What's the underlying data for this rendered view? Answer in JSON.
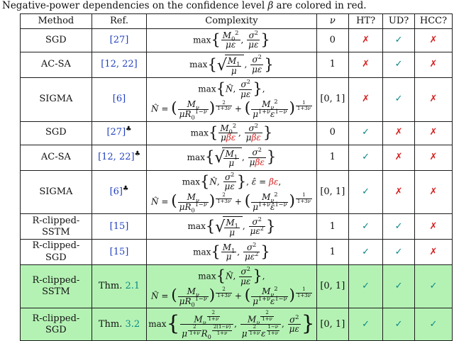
{
  "caption": {
    "prefix": "Negative-power dependencies on the confidence level ",
    "beta": "β",
    "suffix": " are colored in red."
  },
  "colors": {
    "blue": "#2140bf",
    "teal": "#0b8787",
    "red": "#d62222",
    "green": "#b4f2b4"
  },
  "marks": {
    "check": "✓",
    "cross": "✗",
    "club": "♣"
  },
  "header": [
    "Method",
    "Ref.",
    "Complexity",
    "<i>ν</i>",
    "HT?",
    "UD?",
    "HCC?"
  ],
  "rows": [
    {
      "method": "SGD",
      "ref": {
        "prefix": "",
        "link": "[27]",
        "style": "cite",
        "club": false
      },
      "complexity": [
        "max<span class='big'>{</span><span class='fr'><span class='n'><i>M</i><sub>0</sub><sup>2</sup></span><span class='d'><i>με</i></span></span>, <span class='fr'><span class='n'><i>σ</i><sup>2</sup></span><span class='d'><i>με</i></span></span><span class='big'>}</span>"
      ],
      "nu": "0",
      "ht": false,
      "ud": true,
      "hcc": false,
      "highlight": false
    },
    {
      "method": "AC-SA",
      "ref": {
        "prefix": "",
        "link": "[12, 22]",
        "style": "cite",
        "club": false
      },
      "complexity": [
        "max<span class='big'>{</span><span class='sq'><span class='rs'>√</span><span class='rb'><span class='fr'><span class='n'><i>M</i><sub>1</sub></span><span class='d'><i>μ</i></span></span></span></span>, <span class='fr'><span class='n'><i>σ</i><sup>2</sup></span><span class='d'><i>με</i></span></span><span class='big'>}</span>"
      ],
      "nu": "1",
      "ht": false,
      "ud": true,
      "hcc": false,
      "highlight": false
    },
    {
      "method": "SIGMA",
      "ref": {
        "prefix": "",
        "link": "[6]",
        "style": "cite",
        "club": false
      },
      "complexity": [
        "max<span class='big'>{</span><i>N̂</i>, <span class='fr'><span class='n'><i>σ</i><sup>2</sup></span><span class='d'><i>με</i></span></span><span class='big'>}</span>,",
        "<i>N̂</i> = <span class='bp'>(</span><span class='fr'><span class='n'><i>M</i><sub><i>ν</i></sub></span><span class='d'><i>μR</i><sub>0</sub><sup>1−<i>ν</i></sup></span></span><span class='bp'>)</span><span class='ex'><span class='fr'><span class='n'>2</span><span class='d'>1+3<i>ν</i></span></span></span> + <span class='bp'>(</span><span class='fr'><span class='n'><i>M</i><sub><i>ν</i></sub><sup>2</sup></span><span class='d'><i>μ</i><sup>1+<i>ν</i></sup><i>ε</i><sup>1−<i>ν</i></sup></span></span><span class='bp'>)</span><span class='ex'><span class='fr'><span class='n'>1</span><span class='d'>1+3<i>ν</i></span></span></span>"
      ],
      "nu": "[0, 1]",
      "ht": false,
      "ud": true,
      "hcc": false,
      "highlight": false
    },
    {
      "method": "SGD",
      "ref": {
        "prefix": "",
        "link": "[27]",
        "style": "cite",
        "club": true
      },
      "complexity": [
        "max<span class='big'>{</span><span class='fr'><span class='n'><i>M</i><sub>0</sub><sup>2</sup></span><span class='d'><i>μ</i><span class='red'><i>βε</i></span></span></span>, <span class='fr'><span class='n'><i>σ</i><sup>2</sup></span><span class='d'><i>μ</i><span class='red'><i>βε</i></span></span></span><span class='big'>}</span>"
      ],
      "nu": "0",
      "ht": true,
      "ud": false,
      "hcc": false,
      "highlight": false
    },
    {
      "method": "AC-SA",
      "ref": {
        "prefix": "",
        "link": "[12, 22]",
        "style": "cite",
        "club": true
      },
      "complexity": [
        "max<span class='big'>{</span><span class='sq'><span class='rs'>√</span><span class='rb'><span class='fr'><span class='n'><i>M</i><sub>1</sub></span><span class='d'><i>μ</i></span></span></span></span>, <span class='fr'><span class='n'><i>σ</i><sup>2</sup></span><span class='d'><i>μ</i><span class='red'><i>βε</i></span></span></span><span class='big'>}</span>"
      ],
      "nu": "1",
      "ht": true,
      "ud": false,
      "hcc": false,
      "highlight": false
    },
    {
      "method": "SIGMA",
      "ref": {
        "prefix": "",
        "link": "[6]",
        "style": "cite",
        "club": true
      },
      "complexity": [
        "max<span class='big'>{</span><i>N̂</i>, <span class='fr'><span class='n'><i>σ</i><sup>2</sup></span><span class='d'><i>με</i></span></span><span class='big'>}</span>, <i>ε̂</i> = <span class='red'><i>βε</i></span>,",
        "<i>N̂</i> = <span class='bp'>(</span><span class='fr'><span class='n'><i>M</i><sub><i>ν</i></sub></span><span class='d'><i>μR</i><sub>0</sub><sup>1−<i>ν</i></sup></span></span><span class='bp'>)</span><span class='ex'><span class='fr'><span class='n'>2</span><span class='d'>1+3<i>ν</i></span></span></span> + <span class='bp'>(</span><span class='fr'><span class='n'><i>M</i><sub><i>ν</i></sub><sup>2</sup></span><span class='d'><i>μ</i><sup>1+<i>ν</i></sup><i>ε̂</i><sup>1−<i>ν</i></sup></span></span><span class='bp'>)</span><span class='ex'><span class='fr'><span class='n'>1</span><span class='d'>1+3<i>ν</i></span></span></span>"
      ],
      "nu": "[0, 1]",
      "ht": true,
      "ud": false,
      "hcc": false,
      "highlight": false
    },
    {
      "method": "R-clipped-SSTM",
      "ref": {
        "prefix": "",
        "link": "[15]",
        "style": "cite",
        "club": false
      },
      "complexity": [
        "max<span class='big'>{</span><span class='sq'><span class='rs'>√</span><span class='rb'><span class='fr'><span class='n'><i>M</i><sub>1</sub></span><span class='d'><i>μ</i></span></span></span></span>, <span class='fr'><span class='n'><i>σ</i><sup>2</sup></span><span class='d'><i>με</i><sup>2</sup></span></span><span class='big'>}</span>"
      ],
      "nu": "1",
      "ht": true,
      "ud": true,
      "hcc": false,
      "highlight": false
    },
    {
      "method": "R-clipped-SGD",
      "ref": {
        "prefix": "",
        "link": "[15]",
        "style": "cite",
        "club": false
      },
      "complexity": [
        "max<span class='big'>{</span><span class='fr'><span class='n'><i>M</i><sub>1</sub></span><span class='d'><i>μ</i></span></span>, <span class='fr'><span class='n'><i>σ</i><sup>2</sup></span><span class='d'><i>με</i><sup>2</sup></span></span><span class='big'>}</span>"
      ],
      "nu": "1",
      "ht": true,
      "ud": true,
      "hcc": false,
      "highlight": false
    },
    {
      "method": "R-clipped-SSTM",
      "ref": {
        "prefix": "Thm. ",
        "link": "2.1",
        "style": "thm",
        "club": false
      },
      "complexity": [
        "max<span class='big'>{</span><i>N̂</i>, <span class='fr'><span class='n'><i>σ</i><sup>2</sup></span><span class='d'><i>με</i></span></span><span class='big'>}</span>,",
        "<i>N̂</i> = <span class='bp'>(</span><span class='fr'><span class='n'><i>M</i><sub><i>ν</i></sub></span><span class='d'><i>μR</i><sub>0</sub><sup>1−<i>ν</i></sup></span></span><span class='bp'>)</span><span class='ex'><span class='fr'><span class='n'>2</span><span class='d'>1+3<i>ν</i></span></span></span> + <span class='bp'>(</span><span class='fr'><span class='n'><i>M</i><sub><i>ν</i></sub><sup>2</sup></span><span class='d'><i>μ</i><sup>1+<i>ν</i></sup><i>ε</i><sup>1−<i>ν</i></sup></span></span><span class='bp'>)</span><span class='ex'><span class='fr'><span class='n'>1</span><span class='d'>1+3<i>ν</i></span></span></span>"
      ],
      "nu": "[0, 1]",
      "ht": true,
      "ud": true,
      "hcc": true,
      "highlight": true
    },
    {
      "method": "R-clipped-SGD",
      "ref": {
        "prefix": "Thm. ",
        "link": "3.2",
        "style": "thm",
        "club": false
      },
      "complexity": [
        "max<span class='big2'>{</span><span class='fr'><span class='n'><i>M</i><sub><i>ν</i></sub><span class='ex'><span class='fr'><span class='n'>2</span><span class='d'>1+<i>ν</i></span></span></span></span><span class='d'><i>μ</i><span class='ex'><span class='fr'><span class='n'>2</span><span class='d'>1+<i>ν</i></span></span></span><i>R</i><sub>0</sub><span class='ex'><span class='fr'><span class='n'>2(1−<i>ν</i>)</span><span class='d'>1+<i>ν</i></span></span></span></span></span>, <span class='fr'><span class='n'><i>M</i><sub><i>ν</i></sub><span class='ex'><span class='fr'><span class='n'>2</span><span class='d'>1+<i>ν</i></span></span></span></span><span class='d'><i>μ</i><span class='ex'><span class='fr'><span class='n'>2</span><span class='d'>1+<i>ν</i></span></span></span><i>ε</i><span class='ex'><span class='fr'><span class='n'>1−<i>ν</i></span><span class='d'>1+<i>ν</i></span></span></span></span></span>, <span class='fr'><span class='n'><i>σ</i><sup>2</sup></span><span class='d'><i>με</i></span></span><span class='big2'>}</span>"
      ],
      "nu": "[0, 1]",
      "ht": true,
      "ud": true,
      "hcc": true,
      "highlight": true
    }
  ]
}
